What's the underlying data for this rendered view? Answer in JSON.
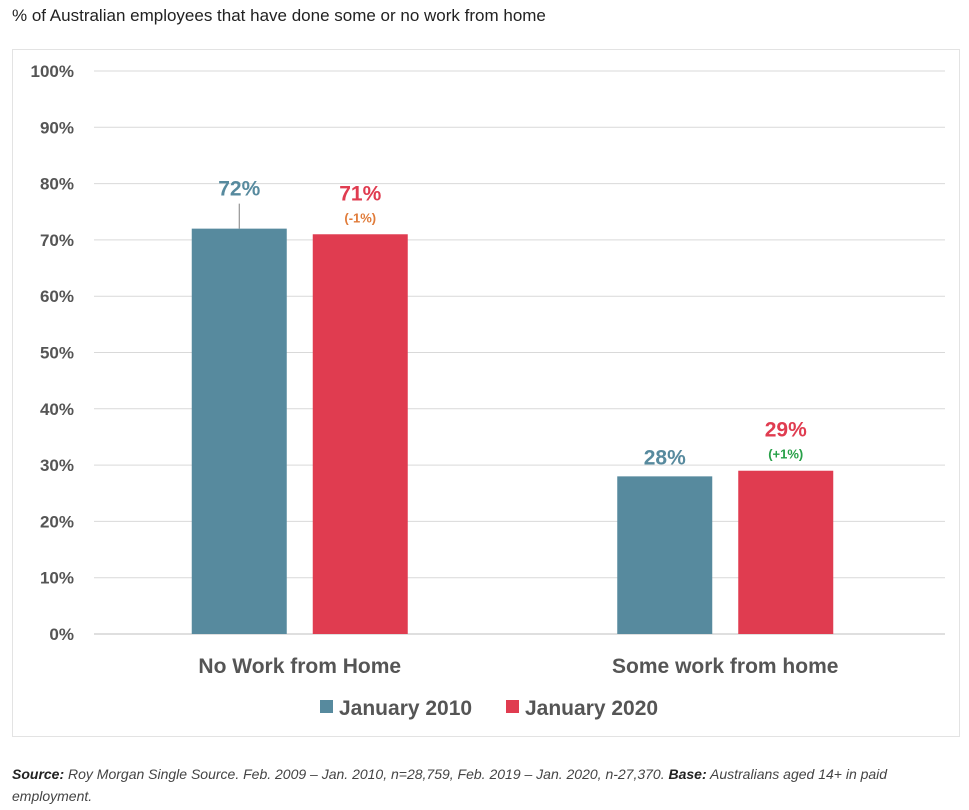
{
  "title": "% of Australian employees that have done some or no work from home",
  "chart_data": {
    "type": "bar",
    "categories": [
      "No Work from Home",
      "Some work from home"
    ],
    "series": [
      {
        "name": "January 2010",
        "color": "#578a9e",
        "values": [
          72,
          28
        ],
        "labels": [
          "72%",
          "28%"
        ]
      },
      {
        "name": "January 2020",
        "color": "#e03c50",
        "values": [
          71,
          29
        ],
        "labels": [
          "71%",
          "29%"
        ],
        "changes": [
          "(-1%)",
          "(+1%)"
        ],
        "change_colors": [
          "#e07b39",
          "#27a048"
        ]
      }
    ],
    "yticks": [
      "0%",
      "10%",
      "20%",
      "30%",
      "40%",
      "50%",
      "60%",
      "70%",
      "80%",
      "90%",
      "100%"
    ],
    "ylim": [
      0,
      100
    ],
    "grid": true,
    "legend": "bottom"
  },
  "footer": {
    "source_label": "Source:",
    "source_text": " Roy Morgan Single Source. Feb. 2009 – Jan. 2010, n=28,759, Feb. 2019 – Jan. 2020, n-27,370. ",
    "base_label": "Base:",
    "base_text": " Australians aged 14+ in paid employment."
  }
}
